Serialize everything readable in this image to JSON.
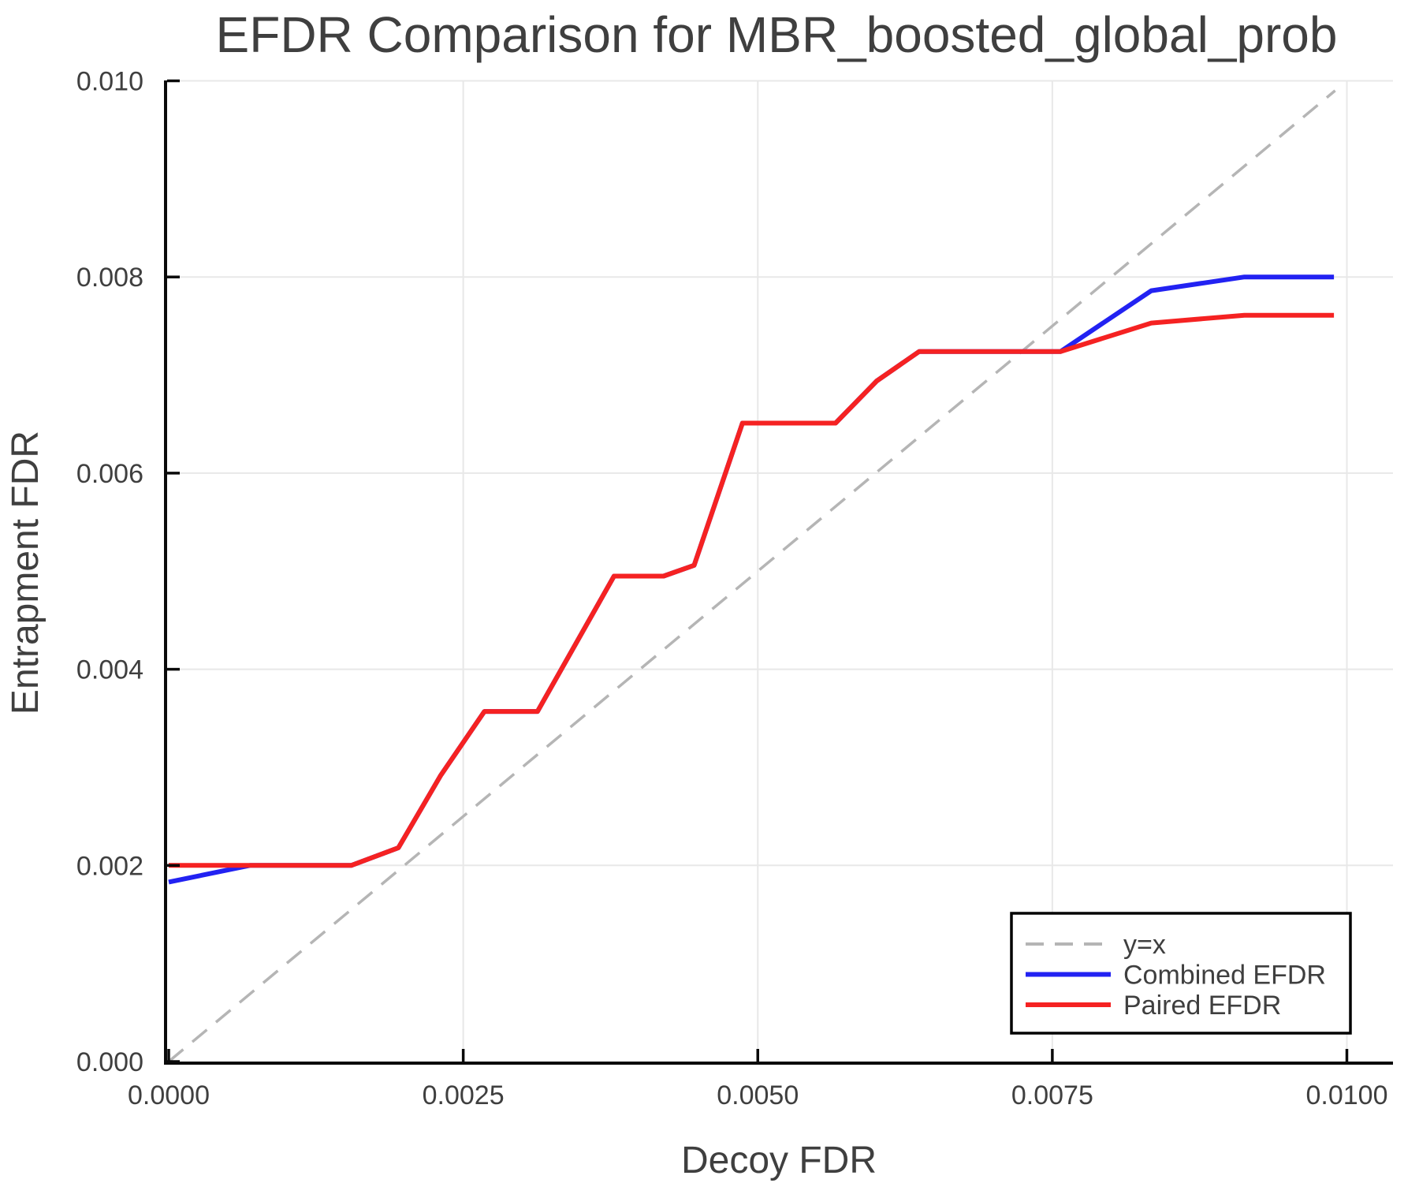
{
  "chart_data": {
    "type": "line",
    "title": "EFDR Comparison for MBR_boosted_global_prob",
    "xlabel": "Decoy FDR",
    "ylabel": "Entrapment FDR",
    "xlim": [
      0.0,
      0.0104
    ],
    "ylim": [
      0.0,
      0.01
    ],
    "grid": true,
    "background": "#ffffff",
    "colors": {
      "grid": "#e8e8e8",
      "spine": "#0a0a0a",
      "tick": "#0a0a0a",
      "text": "#3f3f3f",
      "identity_line": "#b5b5b5",
      "combined": "#2222f2",
      "paired": "#f52222"
    },
    "x_ticks": {
      "values": [
        0.0,
        0.0025,
        0.005,
        0.0075,
        0.01
      ],
      "labels": [
        "0.0000",
        "0.0025",
        "0.0050",
        "0.0075",
        "0.0100"
      ]
    },
    "y_ticks": {
      "values": [
        0.0,
        0.002,
        0.004,
        0.006,
        0.008,
        0.01
      ],
      "labels": [
        "0.000",
        "0.002",
        "0.004",
        "0.006",
        "0.008",
        "0.010"
      ]
    },
    "legend": {
      "position": "bottom-right",
      "entries": [
        "y=x",
        "Combined EFDR",
        "Paired EFDR"
      ]
    },
    "series": [
      {
        "name": "y=x",
        "color": "#b5b5b5",
        "style": "dashed",
        "width": 3.5,
        "points": [
          [
            0.0,
            0.0
          ],
          [
            0.0099,
            0.0099
          ]
        ]
      },
      {
        "name": "Combined EFDR",
        "color": "#2222f2",
        "style": "solid",
        "width": 6,
        "points": [
          [
            0.0,
            0.00183
          ],
          [
            0.00069,
            0.002
          ],
          [
            0.00155,
            0.002
          ],
          [
            0.00195,
            0.00218
          ],
          [
            0.00231,
            0.00292
          ],
          [
            0.00268,
            0.00357
          ],
          [
            0.00313,
            0.00357
          ],
          [
            0.00378,
            0.00495
          ],
          [
            0.0042,
            0.00495
          ],
          [
            0.00446,
            0.00506
          ],
          [
            0.00487,
            0.00651
          ],
          [
            0.00566,
            0.00651
          ],
          [
            0.00601,
            0.00694
          ],
          [
            0.00637,
            0.00724
          ],
          [
            0.00757,
            0.00724
          ],
          [
            0.00834,
            0.00786
          ],
          [
            0.00913,
            0.008
          ],
          [
            0.00989,
            0.008
          ]
        ]
      },
      {
        "name": "Paired EFDR",
        "color": "#f52222",
        "style": "solid",
        "width": 6,
        "points": [
          [
            0.0,
            0.002
          ],
          [
            0.00155,
            0.002
          ],
          [
            0.00195,
            0.00218
          ],
          [
            0.00231,
            0.00292
          ],
          [
            0.00268,
            0.00357
          ],
          [
            0.00313,
            0.00357
          ],
          [
            0.00378,
            0.00495
          ],
          [
            0.0042,
            0.00495
          ],
          [
            0.00446,
            0.00506
          ],
          [
            0.00487,
            0.00651
          ],
          [
            0.00566,
            0.00651
          ],
          [
            0.00601,
            0.00694
          ],
          [
            0.00637,
            0.00724
          ],
          [
            0.00757,
            0.00724
          ],
          [
            0.00834,
            0.00753
          ],
          [
            0.00913,
            0.00761
          ],
          [
            0.00989,
            0.00761
          ]
        ]
      }
    ]
  }
}
